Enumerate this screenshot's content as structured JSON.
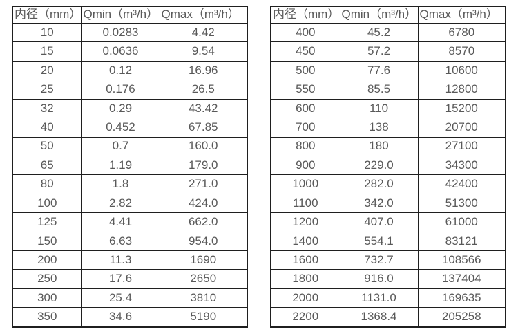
{
  "page": {
    "background": "#ffffff",
    "text_color": "#595959",
    "border_color": "#1f1f1f"
  },
  "chart_data": [
    {
      "type": "table",
      "name": "flow-rates-dn10-dn350",
      "columns": [
        "内径（mm）",
        "Qmin（m³/h）",
        "Qmax（m³/h）"
      ],
      "rows": [
        [
          "10",
          "0.0283",
          "4.42"
        ],
        [
          "15",
          "0.0636",
          "9.54"
        ],
        [
          "20",
          "0.12",
          "16.96"
        ],
        [
          "25",
          "0.176",
          "26.5"
        ],
        [
          "32",
          "0.29",
          "43.42"
        ],
        [
          "40",
          "0.452",
          "67.85"
        ],
        [
          "50",
          "0.7",
          "160.0"
        ],
        [
          "65",
          "1.19",
          "179.0"
        ],
        [
          "80",
          "1.8",
          "271.0"
        ],
        [
          "100",
          "2.82",
          "424.0"
        ],
        [
          "125",
          "4.41",
          "662.0"
        ],
        [
          "150",
          "6.63",
          "954.0"
        ],
        [
          "200",
          "11.3",
          "1690"
        ],
        [
          "250",
          "17.6",
          "2650"
        ],
        [
          "300",
          "25.4",
          "3810"
        ],
        [
          "350",
          "34.6",
          "5190"
        ]
      ]
    },
    {
      "type": "table",
      "name": "flow-rates-dn400-dn2200",
      "columns": [
        "内径（mm）",
        "Qmin（m³/h）",
        "Qmax（m³/h）"
      ],
      "rows": [
        [
          "400",
          "45.2",
          "6780"
        ],
        [
          "450",
          "57.2",
          "8570"
        ],
        [
          "500",
          "77.6",
          "10600"
        ],
        [
          "550",
          "85.5",
          "12800"
        ],
        [
          "600",
          "110",
          "15200"
        ],
        [
          "700",
          "138",
          "20700"
        ],
        [
          "800",
          "180",
          "27100"
        ],
        [
          "900",
          "229.0",
          "34300"
        ],
        [
          "1000",
          "282.0",
          "42400"
        ],
        [
          "1100",
          "342.0",
          "51300"
        ],
        [
          "1200",
          "407.0",
          "61000"
        ],
        [
          "1400",
          "554.1",
          "83121"
        ],
        [
          "1600",
          "732.7",
          "108566"
        ],
        [
          "1800",
          "916.0",
          "137404"
        ],
        [
          "2000",
          "1131.0",
          "169635"
        ],
        [
          "2200",
          "1368.4",
          "205258"
        ]
      ]
    }
  ]
}
